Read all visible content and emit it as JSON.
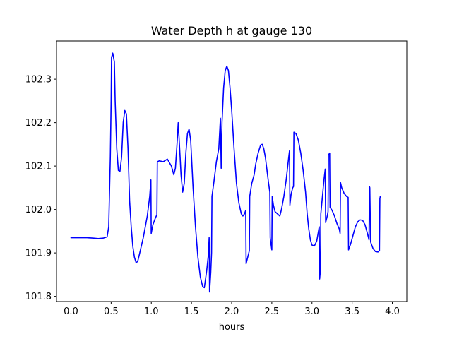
{
  "chart_data": {
    "type": "line",
    "title": "Water Depth h at gauge 130",
    "xlabel": "hours",
    "ylabel": "",
    "xlim": [
      -0.18,
      4.18
    ],
    "ylim": [
      101.788,
      102.388
    ],
    "x_ticks": [
      0.0,
      0.5,
      1.0,
      1.5,
      2.0,
      2.5,
      3.0,
      3.5,
      4.0
    ],
    "x_tick_labels": [
      "0.0",
      "0.5",
      "1.0",
      "1.5",
      "2.0",
      "2.5",
      "3.0",
      "3.5",
      "4.0"
    ],
    "y_ticks": [
      101.8,
      101.9,
      102.0,
      102.1,
      102.2,
      102.3
    ],
    "y_tick_labels": [
      "101.8",
      "101.9",
      "102.0",
      "102.1",
      "102.2",
      "102.3"
    ],
    "grid": false,
    "series": [
      {
        "color": "#0000ff",
        "points": [
          [
            0.0,
            101.935
          ],
          [
            0.1,
            101.935
          ],
          [
            0.2,
            101.935
          ],
          [
            0.28,
            101.934
          ],
          [
            0.34,
            101.933
          ],
          [
            0.4,
            101.934
          ],
          [
            0.45,
            101.937
          ],
          [
            0.47,
            101.96
          ],
          [
            0.49,
            102.12
          ],
          [
            0.5,
            102.25
          ],
          [
            0.505,
            102.35
          ],
          [
            0.52,
            102.36
          ],
          [
            0.54,
            102.34
          ],
          [
            0.55,
            102.25
          ],
          [
            0.57,
            102.14
          ],
          [
            0.59,
            102.09
          ],
          [
            0.61,
            102.088
          ],
          [
            0.63,
            102.12
          ],
          [
            0.65,
            102.2
          ],
          [
            0.67,
            102.228
          ],
          [
            0.69,
            102.22
          ],
          [
            0.71,
            102.14
          ],
          [
            0.73,
            102.02
          ],
          [
            0.75,
            101.96
          ],
          [
            0.77,
            101.915
          ],
          [
            0.79,
            101.89
          ],
          [
            0.81,
            101.878
          ],
          [
            0.83,
            101.88
          ],
          [
            0.85,
            101.895
          ],
          [
            0.9,
            101.935
          ],
          [
            0.95,
            101.985
          ],
          [
            0.98,
            102.03
          ],
          [
            0.995,
            102.068
          ],
          [
            0.999,
            101.945
          ],
          [
            1.02,
            101.965
          ],
          [
            1.05,
            101.98
          ],
          [
            1.07,
            101.988
          ],
          [
            1.075,
            102.11
          ],
          [
            1.1,
            102.112
          ],
          [
            1.15,
            102.11
          ],
          [
            1.2,
            102.116
          ],
          [
            1.25,
            102.1
          ],
          [
            1.28,
            102.08
          ],
          [
            1.3,
            102.095
          ],
          [
            1.32,
            102.15
          ],
          [
            1.335,
            102.2
          ],
          [
            1.35,
            102.15
          ],
          [
            1.37,
            102.08
          ],
          [
            1.39,
            102.04
          ],
          [
            1.41,
            102.06
          ],
          [
            1.43,
            102.13
          ],
          [
            1.45,
            102.175
          ],
          [
            1.47,
            102.185
          ],
          [
            1.49,
            102.16
          ],
          [
            1.52,
            102.05
          ],
          [
            1.55,
            101.96
          ],
          [
            1.58,
            101.89
          ],
          [
            1.61,
            101.845
          ],
          [
            1.64,
            101.822
          ],
          [
            1.66,
            101.82
          ],
          [
            1.69,
            101.86
          ],
          [
            1.71,
            101.895
          ],
          [
            1.72,
            101.935
          ],
          [
            1.725,
            101.81
          ],
          [
            1.74,
            101.855
          ],
          [
            1.75,
            101.9
          ],
          [
            1.755,
            102.03
          ],
          [
            1.78,
            102.065
          ],
          [
            1.81,
            102.11
          ],
          [
            1.84,
            102.14
          ],
          [
            1.86,
            102.21
          ],
          [
            1.87,
            102.095
          ],
          [
            1.88,
            102.2
          ],
          [
            1.9,
            102.28
          ],
          [
            1.92,
            102.32
          ],
          [
            1.94,
            102.33
          ],
          [
            1.96,
            102.32
          ],
          [
            1.98,
            102.28
          ],
          [
            2.0,
            102.23
          ],
          [
            2.03,
            102.14
          ],
          [
            2.06,
            102.06
          ],
          [
            2.09,
            102.015
          ],
          [
            2.12,
            101.99
          ],
          [
            2.14,
            101.985
          ],
          [
            2.16,
            101.99
          ],
          [
            2.175,
            101.998
          ],
          [
            2.18,
            101.875
          ],
          [
            2.2,
            101.89
          ],
          [
            2.22,
            101.905
          ],
          [
            2.225,
            102.03
          ],
          [
            2.25,
            102.06
          ],
          [
            2.28,
            102.08
          ],
          [
            2.3,
            102.105
          ],
          [
            2.33,
            102.13
          ],
          [
            2.36,
            102.148
          ],
          [
            2.38,
            102.15
          ],
          [
            2.4,
            102.14
          ],
          [
            2.42,
            102.12
          ],
          [
            2.44,
            102.09
          ],
          [
            2.46,
            102.06
          ],
          [
            2.475,
            102.04
          ],
          [
            2.48,
            101.935
          ],
          [
            2.49,
            101.92
          ],
          [
            2.5,
            101.907
          ],
          [
            2.505,
            102.03
          ],
          [
            2.52,
            102.01
          ],
          [
            2.54,
            101.995
          ],
          [
            2.57,
            101.99
          ],
          [
            2.6,
            101.985
          ],
          [
            2.62,
            102.0
          ],
          [
            2.65,
            102.03
          ],
          [
            2.68,
            102.07
          ],
          [
            2.71,
            102.12
          ],
          [
            2.72,
            102.135
          ],
          [
            2.725,
            102.01
          ],
          [
            2.74,
            102.035
          ],
          [
            2.76,
            102.05
          ],
          [
            2.77,
            102.053
          ],
          [
            2.775,
            102.178
          ],
          [
            2.8,
            102.175
          ],
          [
            2.83,
            102.16
          ],
          [
            2.86,
            102.13
          ],
          [
            2.89,
            102.09
          ],
          [
            2.92,
            102.04
          ],
          [
            2.94,
            101.99
          ],
          [
            2.96,
            101.955
          ],
          [
            2.98,
            101.93
          ],
          [
            3.0,
            101.918
          ],
          [
            3.03,
            101.916
          ],
          [
            3.06,
            101.928
          ],
          [
            3.09,
            101.96
          ],
          [
            3.095,
            101.84
          ],
          [
            3.105,
            101.86
          ],
          [
            3.11,
            101.99
          ],
          [
            3.13,
            102.03
          ],
          [
            3.15,
            102.07
          ],
          [
            3.165,
            102.093
          ],
          [
            3.17,
            101.97
          ],
          [
            3.19,
            101.985
          ],
          [
            3.2,
            101.995
          ],
          [
            3.205,
            102.125
          ],
          [
            3.22,
            102.13
          ],
          [
            3.225,
            102.005
          ],
          [
            3.25,
            101.998
          ],
          [
            3.28,
            101.985
          ],
          [
            3.31,
            101.968
          ],
          [
            3.34,
            101.955
          ],
          [
            3.35,
            101.945
          ],
          [
            3.355,
            102.062
          ],
          [
            3.37,
            102.05
          ],
          [
            3.4,
            102.037
          ],
          [
            3.43,
            102.03
          ],
          [
            3.45,
            102.028
          ],
          [
            3.455,
            101.907
          ],
          [
            3.48,
            101.92
          ],
          [
            3.51,
            101.94
          ],
          [
            3.54,
            101.96
          ],
          [
            3.57,
            101.972
          ],
          [
            3.6,
            101.976
          ],
          [
            3.63,
            101.975
          ],
          [
            3.66,
            101.965
          ],
          [
            3.69,
            101.945
          ],
          [
            3.71,
            101.93
          ],
          [
            3.715,
            102.053
          ],
          [
            3.72,
            102.05
          ],
          [
            3.73,
            101.925
          ],
          [
            3.76,
            101.91
          ],
          [
            3.79,
            101.903
          ],
          [
            3.82,
            101.902
          ],
          [
            3.84,
            101.905
          ],
          [
            3.845,
            102.025
          ],
          [
            3.85,
            102.03
          ]
        ]
      }
    ]
  }
}
